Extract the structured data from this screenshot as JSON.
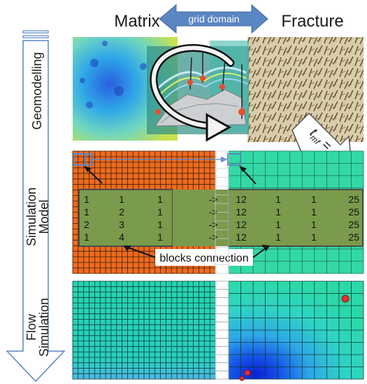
{
  "header": {
    "left_title": "Matrix",
    "right_title": "Fracture",
    "arrow_label": "grid domain"
  },
  "stages": [
    {
      "label": "Geomodelling"
    },
    {
      "label_line1": "Simulation",
      "label_line2": "Model"
    },
    {
      "label_line1": "Flow",
      "label_line2": "Simulation"
    }
  ],
  "equation": {
    "lhs": "t",
    "sub": "mf",
    "rhs": " = σV"
  },
  "connection_table": {
    "left_rows": [
      [
        "1",
        "1",
        "1"
      ],
      [
        "1",
        "2",
        "1"
      ],
      [
        "2",
        "3",
        "1"
      ],
      [
        "1",
        "4",
        "1"
      ]
    ],
    "arrows": [
      "->",
      "->",
      "->",
      "->"
    ],
    "right_rows": [
      [
        "12",
        "1",
        "1",
        "25"
      ],
      [
        "12",
        "1",
        "1",
        "25"
      ],
      [
        "12",
        "1",
        "1",
        "25"
      ],
      [
        "12",
        "1",
        "1",
        "25"
      ]
    ],
    "caption": "blocks connection"
  },
  "colors": {
    "matrix_grid": "#ee6a1e",
    "fracture_grid": "#33d9a4",
    "table_fill": "#7a9a4c",
    "arrow_blue": "#5b86c4",
    "flow_base": "#27d7b0"
  }
}
